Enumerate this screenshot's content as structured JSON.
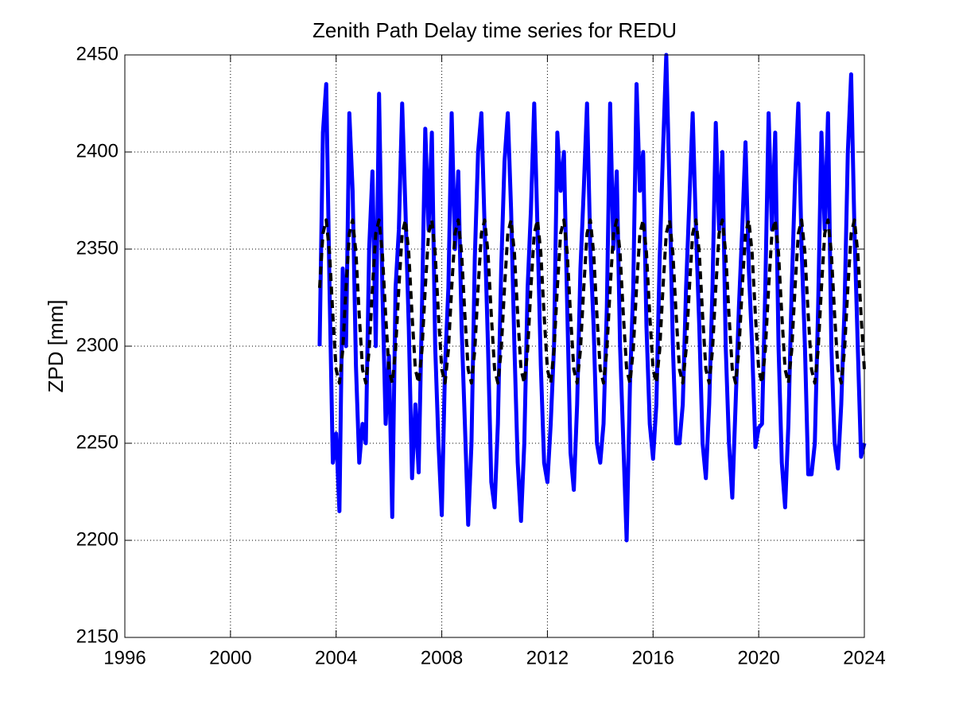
{
  "chart_data": {
    "type": "line",
    "title": "Zenith Path Delay time series for REDU",
    "ylabel": "ZPD [mm]",
    "xlim": [
      1996,
      2024
    ],
    "xticks": [
      1996,
      2000,
      2004,
      2008,
      2012,
      2016,
      2020,
      2024
    ],
    "ylim": [
      2150,
      2450
    ],
    "yticks": [
      2150,
      2200,
      2250,
      2300,
      2350,
      2400,
      2450
    ],
    "grid": true,
    "x": [
      2003.375,
      2003.5,
      2003.625,
      2003.75,
      2003.875,
      2004,
      2004.125,
      2004.25,
      2004.375,
      2004.5,
      2004.625,
      2004.75,
      2004.875,
      2005,
      2005.125,
      2005.25,
      2005.375,
      2005.5,
      2005.625,
      2005.75,
      2005.875,
      2006,
      2006.125,
      2006.25,
      2006.375,
      2006.5,
      2006.625,
      2006.75,
      2006.875,
      2007,
      2007.125,
      2007.25,
      2007.375,
      2007.5,
      2007.625,
      2007.75,
      2007.875,
      2008,
      2008.125,
      2008.25,
      2008.375,
      2008.5,
      2008.625,
      2008.75,
      2008.875,
      2009,
      2009.125,
      2009.25,
      2009.375,
      2009.5,
      2009.625,
      2009.75,
      2009.875,
      2010,
      2010.125,
      2010.25,
      2010.375,
      2010.5,
      2010.625,
      2010.75,
      2010.875,
      2011,
      2011.125,
      2011.25,
      2011.375,
      2011.5,
      2011.625,
      2011.75,
      2011.875,
      2012,
      2012.125,
      2012.25,
      2012.375,
      2012.5,
      2012.625,
      2012.75,
      2012.875,
      2013,
      2013.125,
      2013.25,
      2013.375,
      2013.5,
      2013.625,
      2013.75,
      2013.875,
      2014,
      2014.125,
      2014.25,
      2014.375,
      2014.5,
      2014.625,
      2014.75,
      2014.875,
      2015,
      2015.125,
      2015.25,
      2015.375,
      2015.5,
      2015.625,
      2015.75,
      2015.875,
      2016,
      2016.125,
      2016.25,
      2016.375,
      2016.5,
      2016.625,
      2016.75,
      2016.875,
      2017,
      2017.125,
      2017.25,
      2017.375,
      2017.5,
      2017.625,
      2017.75,
      2017.875,
      2018,
      2018.125,
      2018.25,
      2018.375,
      2018.5,
      2018.625,
      2018.75,
      2018.875,
      2019,
      2019.125,
      2019.25,
      2019.375,
      2019.5,
      2019.625,
      2019.75,
      2019.875,
      2020,
      2020.125,
      2020.25,
      2020.375,
      2020.5,
      2020.625,
      2020.75,
      2020.875,
      2021,
      2021.125,
      2021.25,
      2021.375,
      2021.5,
      2021.625,
      2021.75,
      2021.875,
      2022,
      2022.125,
      2022.25,
      2022.375,
      2022.5,
      2022.625,
      2022.75,
      2022.875,
      2023,
      2023.125,
      2023.25,
      2023.375,
      2023.5,
      2023.625,
      2023.75,
      2023.875,
      2024
    ],
    "series": [
      {
        "color": "#0000ff",
        "width": 5,
        "dashed": false,
        "values": [
          2300,
          2410,
          2435,
          2330,
          2240,
          2255,
          2215,
          2340,
          2300,
          2420,
          2380,
          2290,
          2240,
          2260,
          2250,
          2350,
          2390,
          2300,
          2430,
          2330,
          2260,
          2295,
          2212,
          2330,
          2360,
          2425,
          2370,
          2310,
          2232,
          2270,
          2235,
          2320,
          2412,
          2360,
          2410,
          2300,
          2250,
          2213,
          2290,
          2330,
          2420,
          2350,
          2390,
          2310,
          2260,
          2208,
          2250,
          2345,
          2400,
          2420,
          2360,
          2300,
          2230,
          2217,
          2260,
          2340,
          2395,
          2420,
          2370,
          2300,
          2240,
          2210,
          2250,
          2330,
          2370,
          2425,
          2360,
          2290,
          2240,
          2230,
          2260,
          2300,
          2410,
          2380,
          2400,
          2320,
          2245,
          2226,
          2270,
          2340,
          2380,
          2425,
          2350,
          2310,
          2250,
          2240,
          2260,
          2320,
          2425,
          2350,
          2390,
          2300,
          2250,
          2200,
          2280,
          2330,
          2435,
          2380,
          2400,
          2310,
          2260,
          2242,
          2270,
          2345,
          2400,
          2450,
          2380,
          2300,
          2250,
          2250,
          2270,
          2330,
          2375,
          2420,
          2360,
          2310,
          2250,
          2232,
          2270,
          2330,
          2415,
          2360,
          2400,
          2300,
          2250,
          2222,
          2270,
          2320,
          2360,
          2405,
          2340,
          2300,
          2248,
          2258,
          2260,
          2330,
          2420,
          2360,
          2410,
          2300,
          2240,
          2217,
          2260,
          2330,
          2385,
          2425,
          2350,
          2300,
          2234,
          2234,
          2250,
          2320,
          2410,
          2360,
          2420,
          2300,
          2250,
          2237,
          2270,
          2320,
          2400,
          2440,
          2360,
          2300,
          2243,
          2250
        ]
      },
      {
        "color": "#000000",
        "width": 4,
        "dashed": true,
        "values": [
          2330,
          2358,
          2365,
          2348,
          2316,
          2288,
          2281,
          2298,
          2330,
          2358,
          2365,
          2348,
          2316,
          2288,
          2281,
          2298,
          2330,
          2358,
          2365,
          2348,
          2316,
          2288,
          2281,
          2298,
          2330,
          2358,
          2365,
          2348,
          2316,
          2288,
          2281,
          2298,
          2330,
          2358,
          2365,
          2348,
          2316,
          2288,
          2281,
          2298,
          2330,
          2358,
          2365,
          2348,
          2316,
          2288,
          2281,
          2298,
          2330,
          2358,
          2365,
          2348,
          2316,
          2288,
          2281,
          2298,
          2330,
          2358,
          2365,
          2348,
          2316,
          2288,
          2281,
          2298,
          2330,
          2358,
          2365,
          2348,
          2316,
          2288,
          2281,
          2298,
          2330,
          2358,
          2365,
          2348,
          2316,
          2288,
          2281,
          2298,
          2330,
          2358,
          2365,
          2348,
          2316,
          2288,
          2281,
          2298,
          2330,
          2358,
          2365,
          2348,
          2316,
          2288,
          2281,
          2298,
          2330,
          2358,
          2365,
          2348,
          2316,
          2288,
          2281,
          2298,
          2330,
          2358,
          2365,
          2348,
          2316,
          2288,
          2281,
          2298,
          2330,
          2358,
          2365,
          2348,
          2316,
          2288,
          2281,
          2298,
          2330,
          2358,
          2365,
          2348,
          2316,
          2288,
          2281,
          2298,
          2330,
          2358,
          2365,
          2348,
          2316,
          2288,
          2281,
          2298,
          2330,
          2358,
          2365,
          2348,
          2316,
          2288,
          2281,
          2298,
          2330,
          2358,
          2365,
          2348,
          2316,
          2288,
          2281,
          2298,
          2330,
          2358,
          2365,
          2348,
          2316,
          2288,
          2281,
          2298,
          2330,
          2358,
          2365,
          2348,
          2316,
          2288
        ]
      }
    ]
  }
}
